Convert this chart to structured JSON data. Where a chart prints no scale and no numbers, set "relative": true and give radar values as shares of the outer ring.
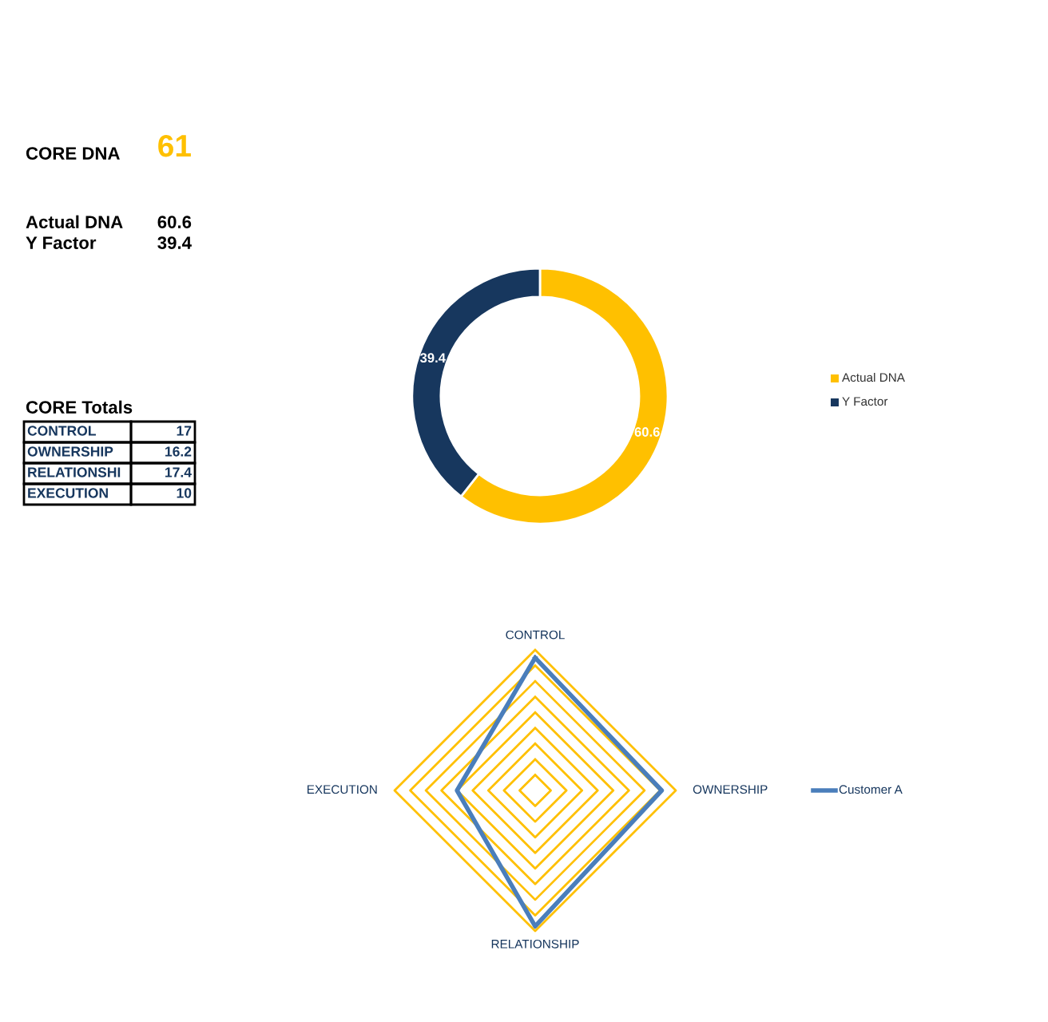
{
  "chart_data": [
    {
      "type": "other",
      "annotations": [
        "CORE DNA",
        "61",
        "Actual DNA",
        "60.6",
        "Y Factor",
        "39.4"
      ],
      "title": "CORE Totals",
      "categories": [
        "CONTROL",
        "OWNERSHIP",
        "RELATIONSHI",
        "EXECUTION"
      ],
      "values": [
        17,
        16.2,
        17.4,
        10
      ],
      "data_labels": true
    },
    {
      "type": "donut",
      "categories": [
        "Actual DNA",
        "Y Factor"
      ],
      "values": [
        60.6,
        39.4
      ],
      "colors": [
        "#ffc000",
        "#17375e"
      ],
      "data_labels": true,
      "legend": "right"
    },
    {
      "type": "radar",
      "relative": true,
      "categories": [
        "CONTROL",
        "OWNERSHIP",
        "RELATIONSHIP",
        "EXECUTION"
      ],
      "series": [
        {
          "name": "Customer A",
          "color": "#4a7ebb",
          "values": [
            0.944,
            0.9,
            0.967,
            0.556
          ]
        }
      ],
      "grid": true,
      "legend": "right"
    }
  ]
}
